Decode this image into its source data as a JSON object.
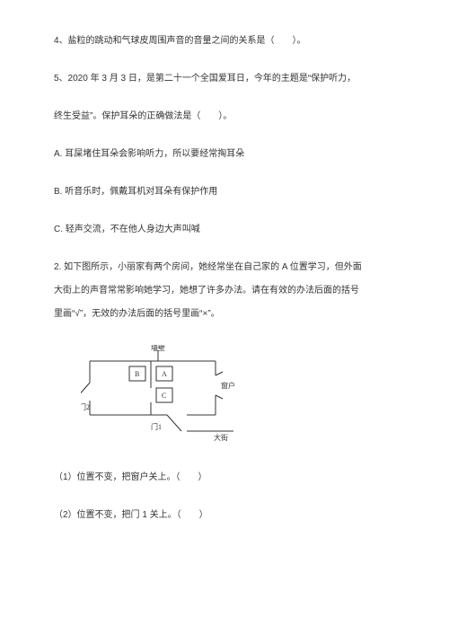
{
  "q4": {
    "text": "4、盐粒的跳动和气球皮周围声音的音量之间的关系是（　　）。"
  },
  "q5": {
    "line1": "5、2020 年 3 月 3 日，是第二十一个全国爱耳日，今年的主题是“保护听力，",
    "line2": "终生受益”。保护耳朵的正确做法是（　　）。",
    "optA": "A. 耳屎堵住耳朵会影响听力，所以要经常掏耳朵",
    "optB": "B. 听音乐时，佩戴耳机对耳朵有保护作用",
    "optC": "C. 轻声交流，不在他人身边大声叫喊"
  },
  "q2": {
    "line1": "2. 如下图所示，小丽家有两个房间，她经常坐在自己家的 A 位置学习，但外面",
    "line2": "大街上的声音常常影响她学习，她想了许多办法。请在有效的办法后面的括号",
    "line3": "里画“√”，无效的办法后面的括号里画“×”。"
  },
  "diagram": {
    "labels": {
      "wall": "墙壁",
      "boxB": "B",
      "boxA": "A",
      "boxC": "C",
      "door1": "门1",
      "door2": "门2",
      "window": "窗户",
      "street": "大街"
    },
    "style": {
      "stroke": "#333333",
      "stroke_width": 1,
      "font_size": 8,
      "font_family": "SimSun, serif",
      "width": 180,
      "height": 110
    }
  },
  "sub": {
    "s1": "（1）位置不变，把窗户关上。（　　）",
    "s2": "（2）位置不变，把门 1 关上。（　　）"
  }
}
